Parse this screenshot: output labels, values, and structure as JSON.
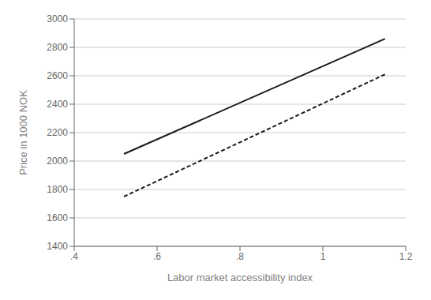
{
  "chart_data": {
    "type": "line",
    "x": [
      0.52,
      1.15
    ],
    "series": [
      {
        "color": "#1a1a1a",
        "line_style": "solid",
        "values": [
          2050,
          2860
        ]
      },
      {
        "color": "#1a1a1a",
        "line_style": "dashed",
        "values": [
          1750,
          2610
        ]
      }
    ],
    "xlabel": "Labor market accessibility index",
    "ylabel": "Price in 1000 NOK",
    "xlim": [
      0.4,
      1.2
    ],
    "ylim": [
      1400,
      3000
    ],
    "xticks": [
      {
        "value": 0.4,
        "label": ".4"
      },
      {
        "value": 0.6,
        "label": ".6"
      },
      {
        "value": 0.8,
        "label": ".8"
      },
      1,
      1.2
    ],
    "yticks": [
      1400,
      1600,
      1800,
      2000,
      2200,
      2400,
      2600,
      2800,
      3000
    ],
    "grid": "y"
  }
}
